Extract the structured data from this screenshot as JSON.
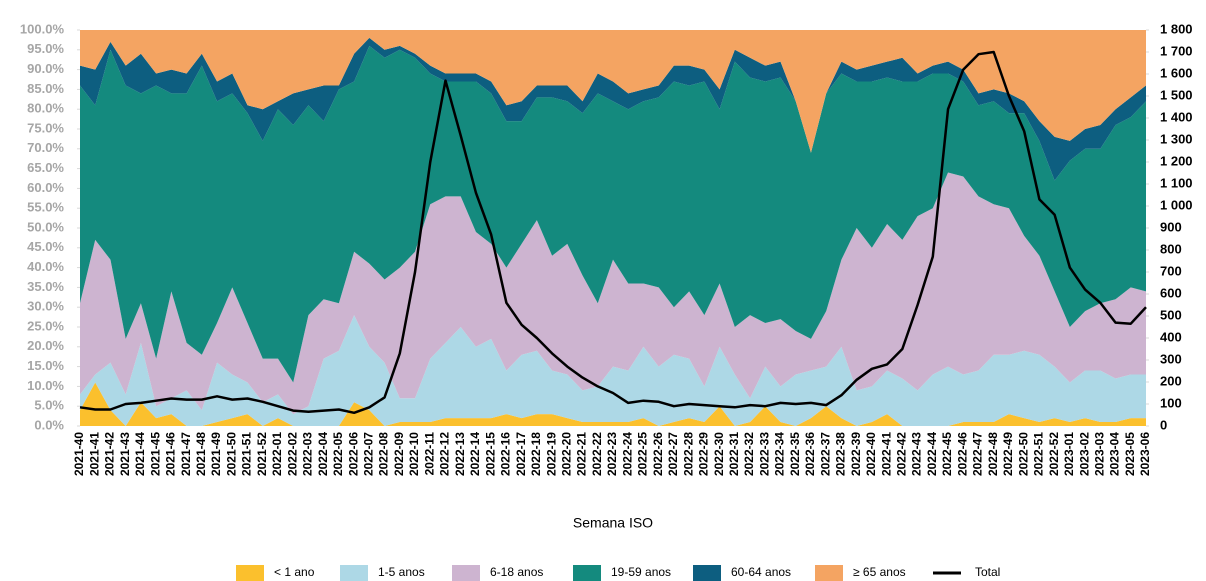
{
  "chart_data": {
    "type": "area",
    "stacked": true,
    "x_label": "Semana ISO",
    "legend_position": "bottom",
    "categories": [
      "2021-40",
      "2021-41",
      "2021-42",
      "2021-43",
      "2021-44",
      "2021-45",
      "2021-46",
      "2021-47",
      "2021-48",
      "2021-49",
      "2021-50",
      "2021-51",
      "2021-52",
      "2022-01",
      "2022-02",
      "2022-03",
      "2022-04",
      "2022-05",
      "2022-06",
      "2022-07",
      "2022-08",
      "2022-09",
      "2022-10",
      "2022-11",
      "2022-12",
      "2022-13",
      "2022-14",
      "2022-15",
      "2022-16",
      "2022-17",
      "2022-18",
      "2022-19",
      "2022-20",
      "2022-21",
      "2022-22",
      "2022-23",
      "2022-24",
      "2022-25",
      "2022-26",
      "2022-27",
      "2022-28",
      "2022-29",
      "2022-30",
      "2022-31",
      "2022-32",
      "2022-33",
      "2022-34",
      "2022-35",
      "2022-36",
      "2022-37",
      "2022-38",
      "2022-39",
      "2022-40",
      "2022-41",
      "2022-42",
      "2022-43",
      "2022-44",
      "2022-45",
      "2022-46",
      "2022-47",
      "2022-48",
      "2022-49",
      "2022-50",
      "2022-51",
      "2022-52",
      "2023-01",
      "2023-02",
      "2023-03",
      "2023-04",
      "2023-05",
      "2023-06"
    ],
    "series": [
      {
        "name": "< 1 ano",
        "color": "#fbc02d",
        "values": [
          4,
          11,
          4,
          0,
          6,
          2,
          3,
          0,
          0,
          1,
          2,
          3,
          0,
          2,
          0,
          0,
          0,
          0,
          6,
          4,
          0,
          1,
          1,
          1,
          2,
          2,
          2,
          2,
          3,
          2,
          3,
          3,
          2,
          1,
          1,
          1,
          1,
          2,
          0,
          1,
          2,
          1,
          5,
          0,
          1,
          5,
          1,
          0,
          2,
          5,
          2,
          0,
          1,
          3,
          0,
          0,
          0,
          0,
          1,
          1,
          1,
          3,
          2,
          1,
          2,
          1,
          2,
          1,
          1,
          2,
          2
        ]
      },
      {
        "name": "1-5 anos",
        "color": "#add8e6",
        "values": [
          4,
          2,
          12,
          8,
          15,
          3,
          4,
          9,
          4,
          15,
          11,
          8,
          6,
          6,
          3,
          5,
          17,
          19,
          22,
          16,
          16,
          6,
          6,
          16,
          19,
          23,
          18,
          20,
          11,
          16,
          16,
          11,
          11,
          8,
          9,
          14,
          13,
          18,
          15,
          17,
          15,
          9,
          15,
          13,
          6,
          10,
          9,
          13,
          12,
          10,
          18,
          9,
          9,
          11,
          12,
          9,
          13,
          15,
          12,
          13,
          17,
          15,
          17,
          17,
          13,
          10,
          12,
          13,
          11,
          11,
          11
        ]
      },
      {
        "name": "6-18 anos",
        "color": "#cdb4d0",
        "values": [
          23,
          34,
          26,
          14,
          10,
          12,
          27,
          12,
          14,
          10,
          22,
          15,
          11,
          9,
          8,
          23,
          15,
          12,
          16,
          21,
          21,
          33,
          37,
          39,
          37,
          33,
          29,
          24,
          26,
          28,
          33,
          29,
          33,
          29,
          21,
          27,
          22,
          16,
          20,
          12,
          17,
          18,
          16,
          12,
          21,
          11,
          17,
          11,
          8,
          14,
          22,
          41,
          35,
          37,
          35,
          44,
          42,
          49,
          50,
          44,
          38,
          37,
          29,
          25,
          19,
          14,
          15,
          17,
          20,
          22,
          21
        ]
      },
      {
        "name": "19-59 anos",
        "color": "#148a7e",
        "values": [
          55,
          34,
          53,
          64,
          53,
          69,
          50,
          63,
          73,
          56,
          49,
          53,
          55,
          63,
          65,
          53,
          45,
          54,
          43,
          55,
          56,
          55,
          49,
          33,
          29,
          29,
          38,
          38,
          37,
          31,
          31,
          40,
          36,
          41,
          53,
          40,
          44,
          46,
          48,
          57,
          52,
          59,
          44,
          67,
          60,
          61,
          61,
          58,
          47,
          55,
          47,
          37,
          42,
          37,
          40,
          34,
          34,
          25,
          24,
          23,
          26,
          24,
          31,
          29,
          28,
          42,
          41,
          39,
          44,
          43,
          48
        ]
      },
      {
        "name": "60-64 anos",
        "color": "#0d5e80",
        "values": [
          5,
          9,
          2,
          5,
          10,
          3,
          6,
          5,
          3,
          5,
          5,
          2,
          8,
          2,
          8,
          4,
          9,
          1,
          7,
          2,
          2,
          1,
          1,
          2,
          2,
          2,
          2,
          3,
          4,
          5,
          3,
          3,
          4,
          3,
          5,
          5,
          4,
          3,
          3,
          4,
          5,
          3,
          5,
          3,
          5,
          4,
          4,
          0,
          0,
          0,
          3,
          3,
          4,
          4,
          6,
          2,
          2,
          3,
          3,
          3,
          3,
          5,
          3,
          5,
          11,
          5,
          5,
          6,
          4,
          5,
          4
        ]
      },
      {
        "name": "≥ 65 anos",
        "color": "#f4a462",
        "values": [
          9,
          10,
          3,
          9,
          6,
          11,
          10,
          11,
          6,
          13,
          11,
          19,
          20,
          18,
          16,
          15,
          14,
          14,
          6,
          2,
          5,
          4,
          6,
          9,
          11,
          11,
          11,
          13,
          19,
          18,
          14,
          14,
          14,
          18,
          11,
          13,
          16,
          15,
          14,
          9,
          9,
          10,
          15,
          5,
          7,
          9,
          8,
          18,
          31,
          16,
          8,
          10,
          9,
          8,
          7,
          11,
          9,
          8,
          10,
          16,
          15,
          16,
          18,
          23,
          27,
          28,
          25,
          24,
          20,
          17,
          14
        ]
      },
      {
        "name": "Total",
        "color": "#000000",
        "axis": "y2",
        "values": [
          85,
          75,
          75,
          100,
          105,
          115,
          125,
          120,
          120,
          135,
          120,
          125,
          110,
          90,
          70,
          65,
          70,
          75,
          60,
          85,
          130,
          330,
          700,
          1200,
          1570,
          1320,
          1060,
          870,
          560,
          460,
          400,
          330,
          270,
          220,
          180,
          150,
          105,
          115,
          110,
          90,
          100,
          95,
          90,
          85,
          95,
          90,
          105,
          100,
          105,
          95,
          140,
          210,
          260,
          280,
          350,
          550,
          770,
          1440,
          1620,
          1690,
          1700,
          1500,
          1340,
          1030,
          960,
          720,
          620,
          560,
          470,
          465,
          540
        ]
      }
    ],
    "ylim": [
      0,
      100
    ],
    "yticks": [
      {
        "value": 0,
        "label": "0.0%"
      },
      {
        "value": 5,
        "label": "5.0%"
      },
      {
        "value": 10,
        "label": "10.0%"
      },
      {
        "value": 15,
        "label": "15.0%"
      },
      {
        "value": 20,
        "label": "20.0%"
      },
      {
        "value": 25,
        "label": "25.0%"
      },
      {
        "value": 30,
        "label": "30.0%"
      },
      {
        "value": 35,
        "label": "35.0%"
      },
      {
        "value": 40,
        "label": "40.0%"
      },
      {
        "value": 45,
        "label": "45.0%"
      },
      {
        "value": 50,
        "label": "50.0%"
      },
      {
        "value": 55,
        "label": "55.0%"
      },
      {
        "value": 60,
        "label": "60.0%"
      },
      {
        "value": 65,
        "label": "65.0%"
      },
      {
        "value": 70,
        "label": "70.0%"
      },
      {
        "value": 75,
        "label": "75.0%"
      },
      {
        "value": 80,
        "label": "80.0%"
      },
      {
        "value": 85,
        "label": "85.0%"
      },
      {
        "value": 90,
        "label": "90.0%"
      },
      {
        "value": 95,
        "label": "95.0%"
      },
      {
        "value": 100,
        "label": "100.0%"
      }
    ],
    "y2lim": [
      0,
      1800
    ],
    "y2ticks": [
      0,
      100,
      200,
      300,
      400,
      500,
      600,
      700,
      800,
      900,
      {
        "value": 1000,
        "label": "1 000"
      },
      {
        "value": 1100,
        "label": "1 100"
      },
      {
        "value": 1200,
        "label": "1 200"
      },
      {
        "value": 1300,
        "label": "1 300"
      },
      {
        "value": 1400,
        "label": "1 400"
      },
      {
        "value": 1500,
        "label": "1 500"
      },
      {
        "value": 1600,
        "label": "1 600"
      },
      {
        "value": 1700,
        "label": "1 700"
      },
      {
        "value": 1800,
        "label": "1 800"
      }
    ]
  }
}
